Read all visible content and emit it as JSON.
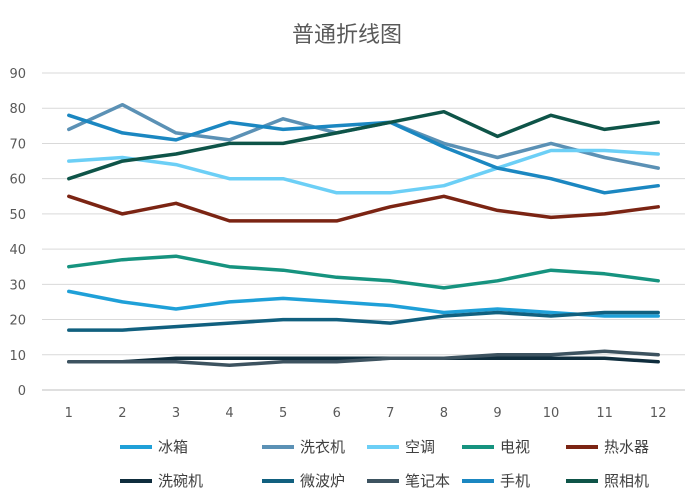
{
  "chart_data": {
    "type": "line",
    "title": "普通折线图",
    "x": [
      1,
      2,
      3,
      4,
      5,
      6,
      7,
      8,
      9,
      10,
      11,
      12
    ],
    "ylim": [
      0,
      90
    ],
    "yticks": [
      0,
      10,
      20,
      30,
      40,
      50,
      60,
      70,
      80,
      90
    ],
    "grid": "horizontal",
    "legend_position": "bottom",
    "series": [
      {
        "name": "冰箱",
        "color": "#1fa0d8",
        "values": [
          28,
          25,
          23,
          25,
          26,
          25,
          24,
          22,
          23,
          22,
          21,
          21
        ]
      },
      {
        "name": "洗衣机",
        "color": "#5b91b5",
        "values": [
          74,
          81,
          73,
          71,
          77,
          73,
          76,
          70,
          66,
          70,
          66,
          63
        ]
      },
      {
        "name": "空调",
        "color": "#6ccff6",
        "values": [
          65,
          66,
          64,
          60,
          60,
          56,
          56,
          58,
          63,
          68,
          68,
          67
        ]
      },
      {
        "name": "电视",
        "color": "#16937f",
        "values": [
          35,
          37,
          38,
          35,
          34,
          32,
          31,
          29,
          31,
          34,
          33,
          31
        ]
      },
      {
        "name": "热水器",
        "color": "#7b2413",
        "values": [
          55,
          50,
          53,
          48,
          48,
          48,
          52,
          55,
          51,
          49,
          50,
          52
        ]
      },
      {
        "name": "洗碗机",
        "color": "#0f2d3d",
        "values": [
          8,
          8,
          9,
          9,
          9,
          9,
          9,
          9,
          9,
          9,
          9,
          8
        ]
      },
      {
        "name": "微波炉",
        "color": "#11607f",
        "values": [
          17,
          17,
          18,
          19,
          20,
          20,
          19,
          21,
          22,
          21,
          22,
          22
        ]
      },
      {
        "name": "笔记本",
        "color": "#3d5360",
        "values": [
          8,
          8,
          8,
          7,
          8,
          8,
          9,
          9,
          10,
          10,
          11,
          10
        ]
      },
      {
        "name": "手机",
        "color": "#1b87c1",
        "values": [
          78,
          73,
          71,
          76,
          74,
          75,
          76,
          69,
          63,
          60,
          56,
          58
        ]
      },
      {
        "name": "照相机",
        "color": "#0e5448",
        "values": [
          60,
          65,
          67,
          70,
          70,
          73,
          76,
          79,
          72,
          78,
          74,
          76
        ]
      }
    ]
  }
}
